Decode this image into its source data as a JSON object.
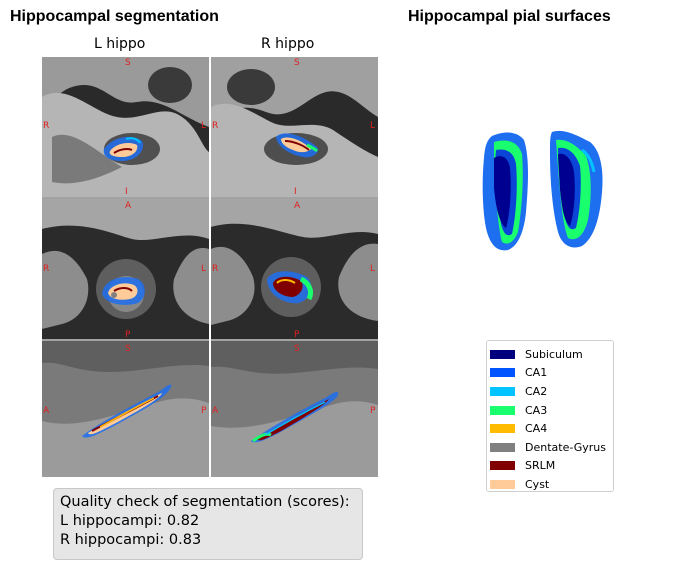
{
  "titles": {
    "segmentation": "Hippocampal segmentation",
    "pial": "Hippocampal pial surfaces"
  },
  "columns": {
    "left": "L hippo",
    "right": "R hippo"
  },
  "orientation": {
    "coronal": {
      "top": "S",
      "bottom": "I",
      "left": "R",
      "right": "L"
    },
    "axial": {
      "top": "A",
      "bottom": "P",
      "left": "R",
      "right": "L"
    },
    "sagittal": {
      "top": "S",
      "left": "A",
      "right": "P"
    }
  },
  "quality": {
    "heading": "Quality check of segmentation (scores):",
    "left": "L hippocampi: 0.82",
    "right": "R hippocampi: 0.83"
  },
  "legend": [
    {
      "label": "Subiculum",
      "color": "#00007f"
    },
    {
      "label": "CA1",
      "color": "#0055ff"
    },
    {
      "label": "CA2",
      "color": "#00c3ff"
    },
    {
      "label": "CA3",
      "color": "#1aff6e"
    },
    {
      "label": "CA4",
      "color": "#ffbb00"
    },
    {
      "label": "Dentate-Gyrus",
      "color": "#808080"
    },
    {
      "label": "SRLM",
      "color": "#800000"
    },
    {
      "label": "Cyst",
      "color": "#ffcc99"
    }
  ]
}
